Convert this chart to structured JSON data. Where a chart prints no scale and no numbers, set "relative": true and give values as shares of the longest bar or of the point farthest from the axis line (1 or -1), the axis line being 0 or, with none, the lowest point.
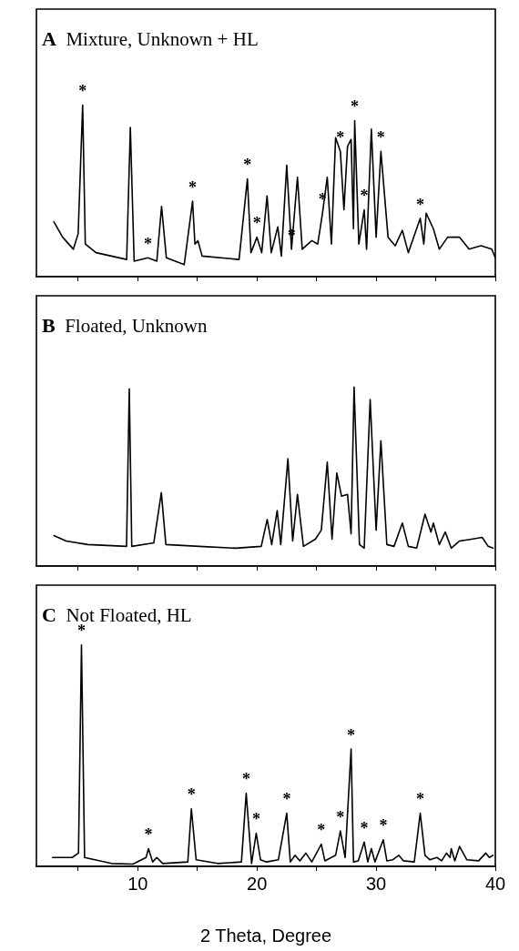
{
  "chart_data": [
    {
      "type": "line",
      "title": "A Mixture, Unknown + HL",
      "relative": true,
      "xlim": [
        1.5,
        40
      ],
      "xticks": [
        {
          "value": 5,
          "label": null
        },
        {
          "value": 10,
          "label": null
        },
        {
          "value": 15,
          "label": null
        },
        {
          "value": 20,
          "label": null
        },
        {
          "value": 25,
          "label": null
        },
        {
          "value": 30,
          "label": null
        },
        {
          "value": 35,
          "label": null
        },
        {
          "value": 40,
          "label": null
        }
      ],
      "tick_labels": false,
      "grid": false,
      "legend": false,
      "marker": "none",
      "line_style": "solid",
      "x": [
        2.96,
        3.7,
        4.6,
        5.0,
        5.38,
        5.6,
        6.5,
        9.07,
        9.38,
        9.7,
        10.85,
        11.6,
        12.0,
        12.4,
        13.9,
        14.6,
        14.8,
        15.05,
        15.4,
        18.5,
        19.2,
        19.5,
        20.0,
        20.4,
        20.85,
        21.2,
        21.75,
        22.05,
        22.5,
        22.9,
        23.4,
        23.8,
        24.6,
        25.1,
        25.5,
        25.9,
        26.25,
        26.6,
        27.0,
        27.3,
        27.6,
        27.9,
        28.1,
        28.2,
        28.55,
        29.0,
        29.2,
        29.6,
        30.0,
        30.4,
        31.0,
        31.6,
        32.2,
        32.7,
        33.7,
        34.0,
        34.2,
        34.8,
        35.3,
        36.0,
        37.0,
        37.8,
        38.8,
        39.7,
        40.0
      ],
      "series": [
        {
          "color": "#000000",
          "values": [
            0.32,
            0.23,
            0.16,
            0.25,
            1.0,
            0.19,
            0.14,
            0.1,
            0.87,
            0.09,
            0.11,
            0.09,
            0.41,
            0.11,
            0.07,
            0.44,
            0.19,
            0.21,
            0.12,
            0.1,
            0.57,
            0.14,
            0.23,
            0.14,
            0.47,
            0.14,
            0.29,
            0.12,
            0.65,
            0.16,
            0.58,
            0.16,
            0.21,
            0.19,
            0.37,
            0.58,
            0.19,
            0.81,
            0.73,
            0.39,
            0.76,
            0.8,
            0.28,
            0.91,
            0.19,
            0.39,
            0.16,
            0.86,
            0.23,
            0.73,
            0.23,
            0.18,
            0.27,
            0.14,
            0.34,
            0.19,
            0.37,
            0.28,
            0.16,
            0.23,
            0.23,
            0.16,
            0.18,
            0.16,
            0.11
          ]
        }
      ],
      "annotations": [
        {
          "text": "*",
          "x": 5.38,
          "y": 1.0
        },
        {
          "text": "*",
          "x": 10.85,
          "y": 0.11
        },
        {
          "text": "*",
          "x": 14.6,
          "y": 0.44
        },
        {
          "text": "*",
          "x": 19.2,
          "y": 0.57
        },
        {
          "text": "*",
          "x": 20.0,
          "y": 0.23
        },
        {
          "text": "*",
          "x": 22.9,
          "y": 0.16
        },
        {
          "text": "*",
          "x": 25.5,
          "y": 0.37
        },
        {
          "text": "*",
          "x": 27.0,
          "y": 0.73
        },
        {
          "text": "*",
          "x": 28.2,
          "y": 0.91
        },
        {
          "text": "*",
          "x": 29.0,
          "y": 0.39
        },
        {
          "text": "*",
          "x": 30.4,
          "y": 0.73
        },
        {
          "text": "*",
          "x": 33.7,
          "y": 0.34
        }
      ]
    },
    {
      "type": "line",
      "title": "B Floated, Unknown",
      "relative": true,
      "xlim": [
        1.5,
        40
      ],
      "xticks": [
        {
          "value": 5,
          "label": null
        },
        {
          "value": 10,
          "label": null
        },
        {
          "value": 15,
          "label": null
        },
        {
          "value": 20,
          "label": null
        },
        {
          "value": 25,
          "label": null
        },
        {
          "value": 30,
          "label": null
        },
        {
          "value": 35,
          "label": null
        },
        {
          "value": 40,
          "label": null
        }
      ],
      "tick_labels": false,
      "grid": false,
      "legend": false,
      "marker": "none",
      "line_style": "solid",
      "x": [
        2.97,
        4.0,
        5.8,
        9.06,
        9.29,
        9.5,
        11.35,
        11.98,
        12.36,
        15.15,
        18.2,
        20.36,
        20.86,
        21.24,
        21.7,
        22.0,
        22.6,
        23.0,
        23.4,
        23.9,
        24.9,
        25.4,
        25.9,
        26.3,
        26.7,
        27.1,
        27.6,
        27.9,
        28.15,
        28.6,
        29.0,
        29.5,
        30.0,
        30.4,
        30.9,
        31.5,
        32.2,
        32.7,
        33.4,
        34.1,
        34.6,
        34.8,
        35.3,
        35.8,
        36.3,
        37.0,
        38.0,
        38.9,
        39.4,
        39.8
      ],
      "series": [
        {
          "color": "#000000",
          "values": [
            0.17,
            0.14,
            0.12,
            0.11,
            0.99,
            0.11,
            0.13,
            0.41,
            0.12,
            0.11,
            0.1,
            0.11,
            0.26,
            0.12,
            0.31,
            0.12,
            0.6,
            0.14,
            0.4,
            0.11,
            0.15,
            0.2,
            0.58,
            0.15,
            0.52,
            0.39,
            0.4,
            0.18,
            1.0,
            0.12,
            0.1,
            0.93,
            0.2,
            0.7,
            0.12,
            0.11,
            0.24,
            0.11,
            0.1,
            0.29,
            0.19,
            0.24,
            0.12,
            0.19,
            0.1,
            0.14,
            0.15,
            0.16,
            0.11,
            0.1
          ]
        }
      ]
    },
    {
      "type": "line",
      "title": "C Not Floated, HL",
      "xlabel": "2 Theta, Degree",
      "relative": true,
      "xlim": [
        1.5,
        40
      ],
      "xticks": [
        {
          "value": 5,
          "label": null
        },
        10,
        {
          "value": 15,
          "label": null
        },
        20,
        {
          "value": 25,
          "label": null
        },
        30,
        {
          "value": 35,
          "label": null
        },
        40
      ],
      "tick_labels": "x",
      "grid": false,
      "legend": false,
      "marker": "none",
      "line_style": "solid",
      "x": [
        2.85,
        4.5,
        5.03,
        5.28,
        5.54,
        7.8,
        9.6,
        10.7,
        10.9,
        11.25,
        11.6,
        12.1,
        14.2,
        14.5,
        14.9,
        16.7,
        18.7,
        19.1,
        19.55,
        19.94,
        20.3,
        20.8,
        21.8,
        22.5,
        22.8,
        23.2,
        23.6,
        24.1,
        24.6,
        25.4,
        25.7,
        26.6,
        27.0,
        27.4,
        27.9,
        28.1,
        28.5,
        29.0,
        29.3,
        29.6,
        29.9,
        30.6,
        30.9,
        31.4,
        31.9,
        32.3,
        33.2,
        33.7,
        34.1,
        34.5,
        35.1,
        35.5,
        35.9,
        36.2,
        36.3,
        36.6,
        37.0,
        37.6,
        38.6,
        39.2,
        39.5,
        39.8
      ],
      "series": [
        {
          "color": "#000000",
          "values": [
            0.04,
            0.04,
            0.06,
            1.0,
            0.04,
            0.013,
            0.01,
            0.04,
            0.08,
            0.02,
            0.04,
            0.013,
            0.02,
            0.26,
            0.03,
            0.013,
            0.02,
            0.33,
            0.013,
            0.15,
            0.03,
            0.02,
            0.03,
            0.24,
            0.02,
            0.05,
            0.025,
            0.06,
            0.02,
            0.1,
            0.025,
            0.05,
            0.16,
            0.04,
            0.53,
            0.02,
            0.025,
            0.11,
            0.02,
            0.08,
            0.02,
            0.12,
            0.025,
            0.03,
            0.05,
            0.025,
            0.02,
            0.24,
            0.05,
            0.03,
            0.04,
            0.025,
            0.06,
            0.04,
            0.08,
            0.025,
            0.09,
            0.03,
            0.025,
            0.06,
            0.04,
            0.05
          ]
        }
      ],
      "annotations": [
        {
          "text": "*",
          "x": 5.28,
          "y": 1.0
        },
        {
          "text": "*",
          "x": 10.9,
          "y": 0.08
        },
        {
          "text": "*",
          "x": 14.5,
          "y": 0.26
        },
        {
          "text": "*",
          "x": 19.1,
          "y": 0.33
        },
        {
          "text": "*",
          "x": 19.94,
          "y": 0.15
        },
        {
          "text": "*",
          "x": 22.5,
          "y": 0.24
        },
        {
          "text": "*",
          "x": 25.4,
          "y": 0.1
        },
        {
          "text": "*",
          "x": 27.0,
          "y": 0.16
        },
        {
          "text": "*",
          "x": 27.9,
          "y": 0.53
        },
        {
          "text": "*",
          "x": 29.0,
          "y": 0.11
        },
        {
          "text": "*",
          "x": 30.6,
          "y": 0.12
        },
        {
          "text": "*",
          "x": 33.7,
          "y": 0.24
        }
      ]
    }
  ]
}
